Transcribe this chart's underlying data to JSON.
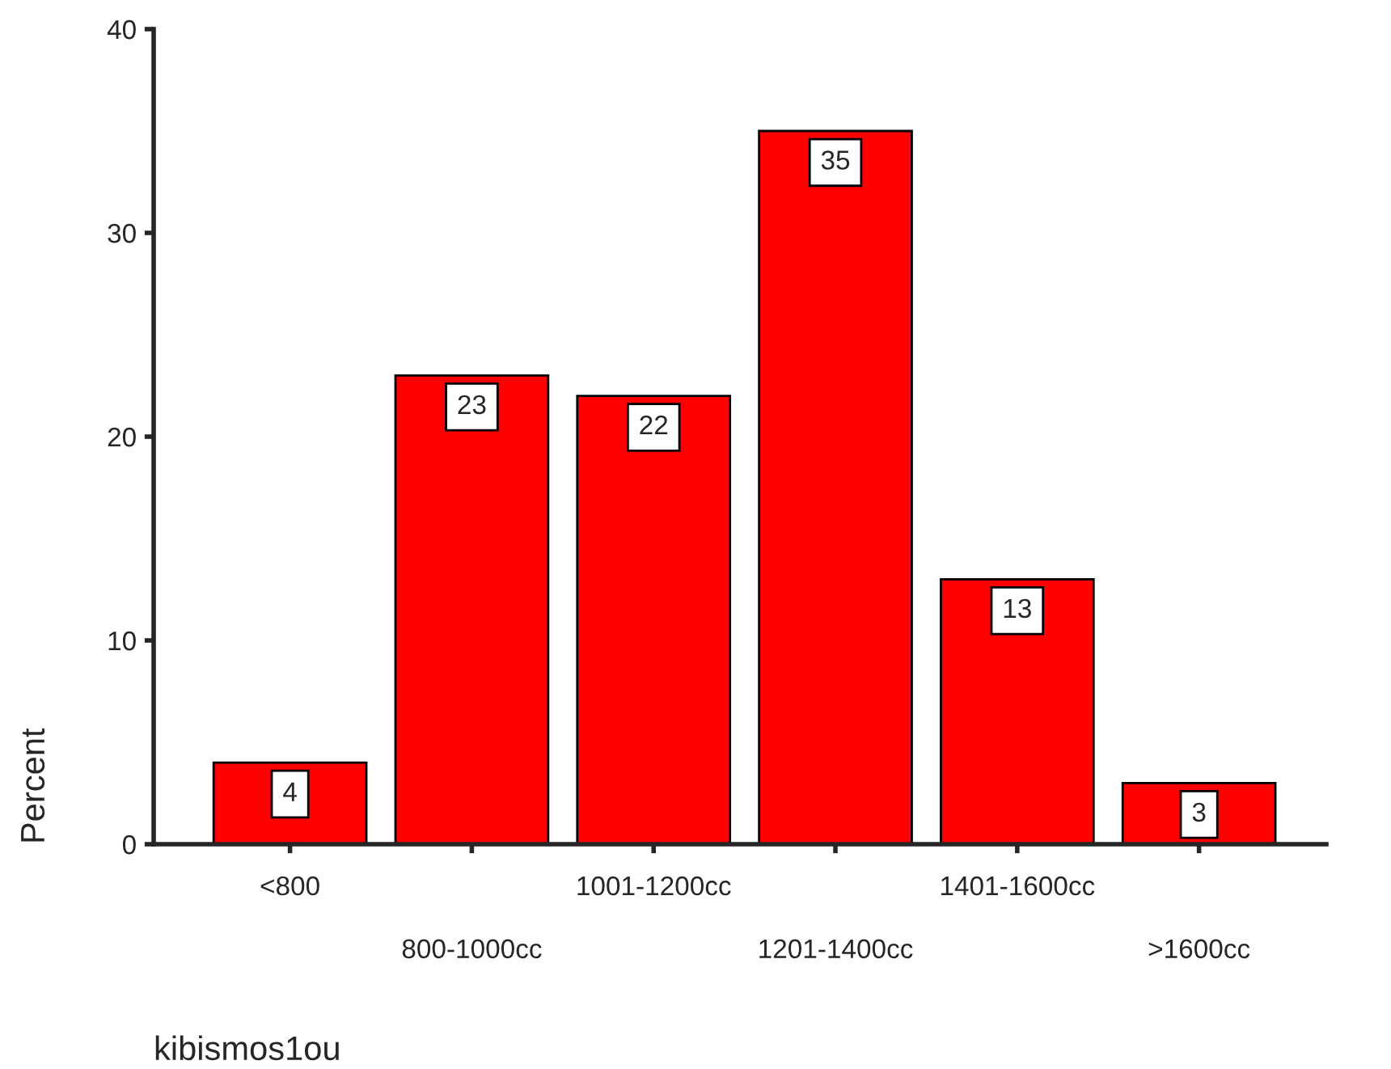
{
  "chart_data": {
    "type": "bar",
    "xlabel": "kibismos1ou",
    "ylabel": "Percent",
    "categories": [
      "<800",
      "800-1000cc",
      "1001-1200cc",
      "1201-1400cc",
      "1401-1600cc",
      ">1600cc"
    ],
    "values": [
      4,
      23,
      22,
      35,
      13,
      3
    ],
    "color": "#ff0000",
    "ylim": [
      0,
      40
    ],
    "yticks": [
      0,
      10,
      20,
      30,
      40
    ],
    "data_labels": true,
    "grid": false,
    "legend": false
  }
}
